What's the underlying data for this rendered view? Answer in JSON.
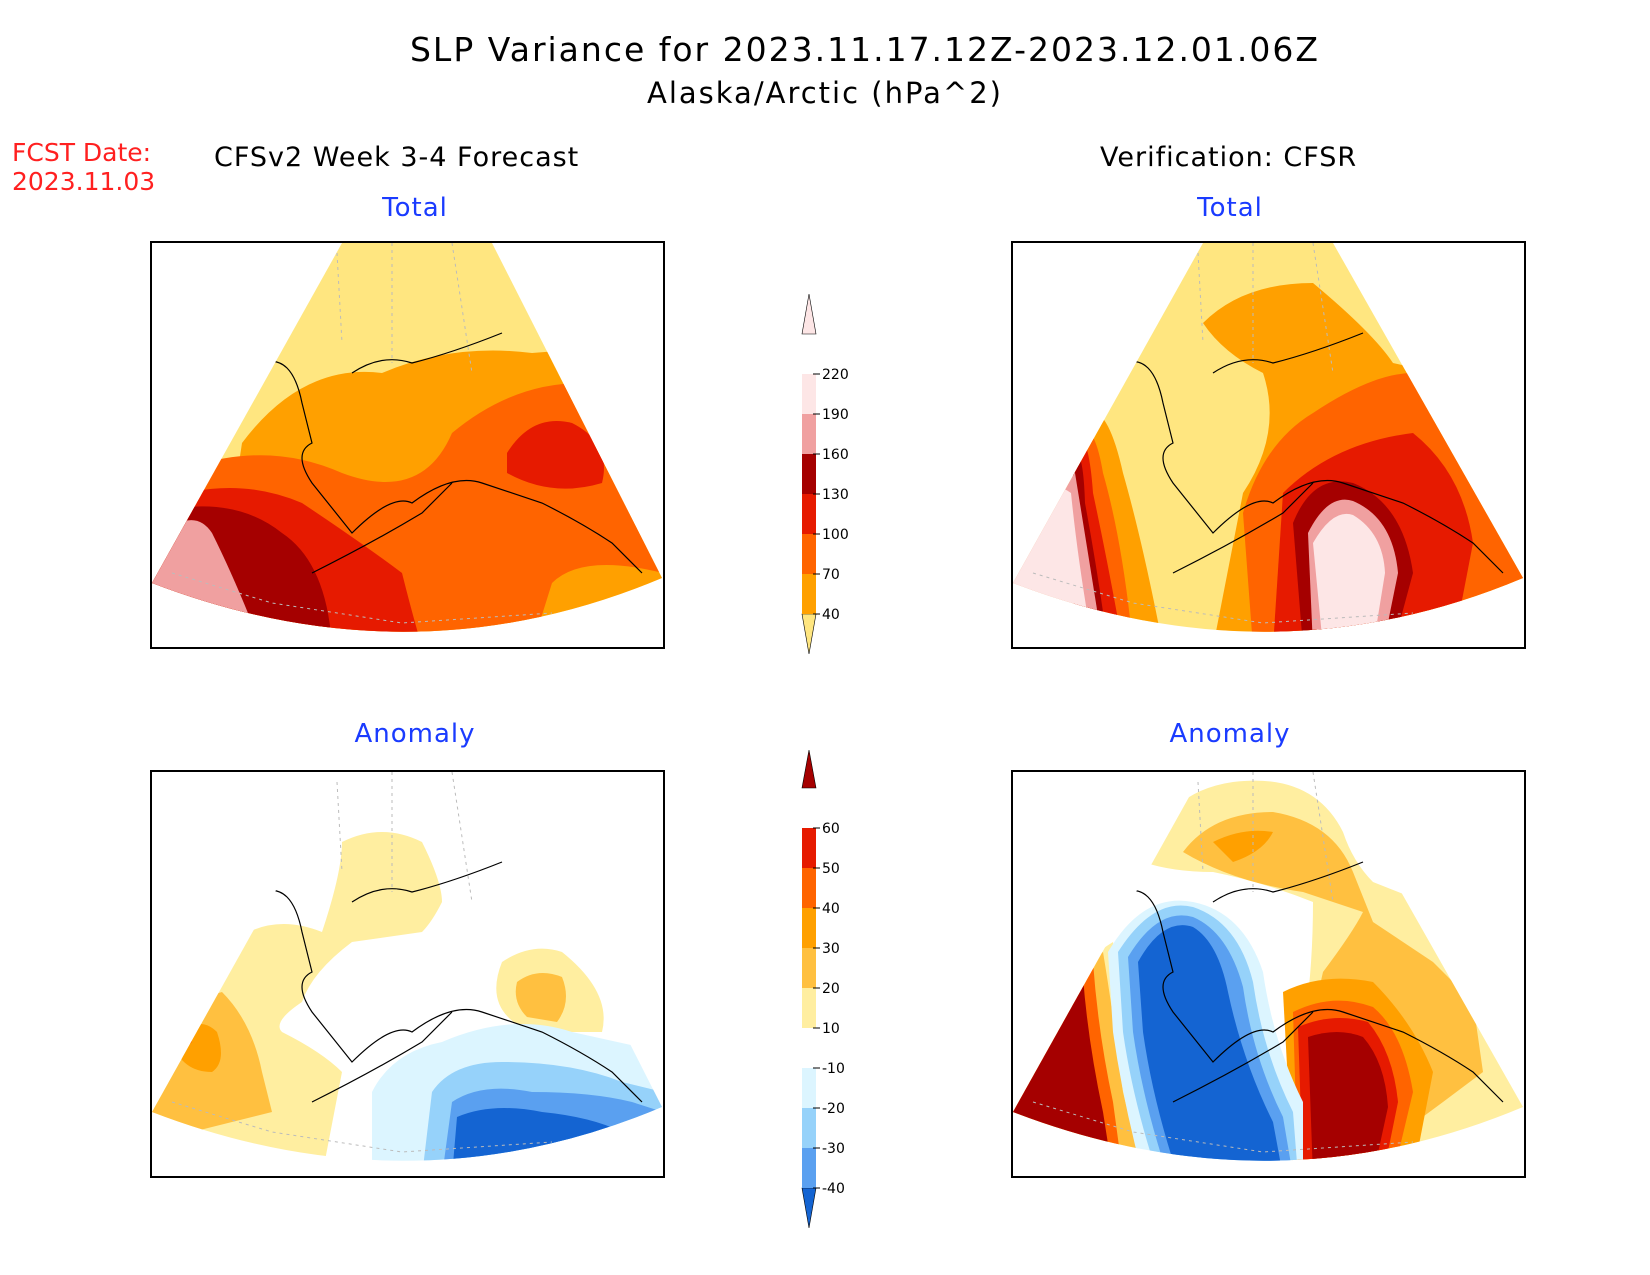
{
  "header": {
    "title_line1": "SLP Variance for 2023.11.17.12Z-2023.12.01.06Z",
    "title_line2": "Alaska/Arctic (hPa^2)",
    "fcst_label": "FCST Date:",
    "fcst_date": "2023.11.03",
    "left_heading": "CFSv2 Week 3-4 Forecast",
    "right_heading": "Verification: CFSR"
  },
  "panels": {
    "top_left": {
      "subtitle": "Total"
    },
    "top_right": {
      "subtitle": "Total"
    },
    "bottom_left": {
      "subtitle": "Anomaly"
    },
    "bottom_right": {
      "subtitle": "Anomaly"
    }
  },
  "colorbar_total": {
    "levels": [
      "40",
      "70",
      "100",
      "130",
      "160",
      "190",
      "220"
    ],
    "colors": [
      "#ffe680",
      "#ffa000",
      "#ff6400",
      "#e61a00",
      "#a50000",
      "#f0a0a0",
      "#fde6e6"
    ]
  },
  "colorbar_anomaly": {
    "levels": [
      "-40",
      "-30",
      "-20",
      "-10",
      "10",
      "20",
      "30",
      "40",
      "50",
      "60"
    ],
    "colors": [
      "#1464d2",
      "#5aa0f0",
      "#96d2fa",
      "#dcf5ff",
      "#ffffff",
      "#ffeea0",
      "#ffc040",
      "#ffa000",
      "#ff6400",
      "#e61a00",
      "#a50000"
    ]
  },
  "palette": {
    "title_blue": "#1a3bff",
    "fcst_red": "#ff2020"
  }
}
